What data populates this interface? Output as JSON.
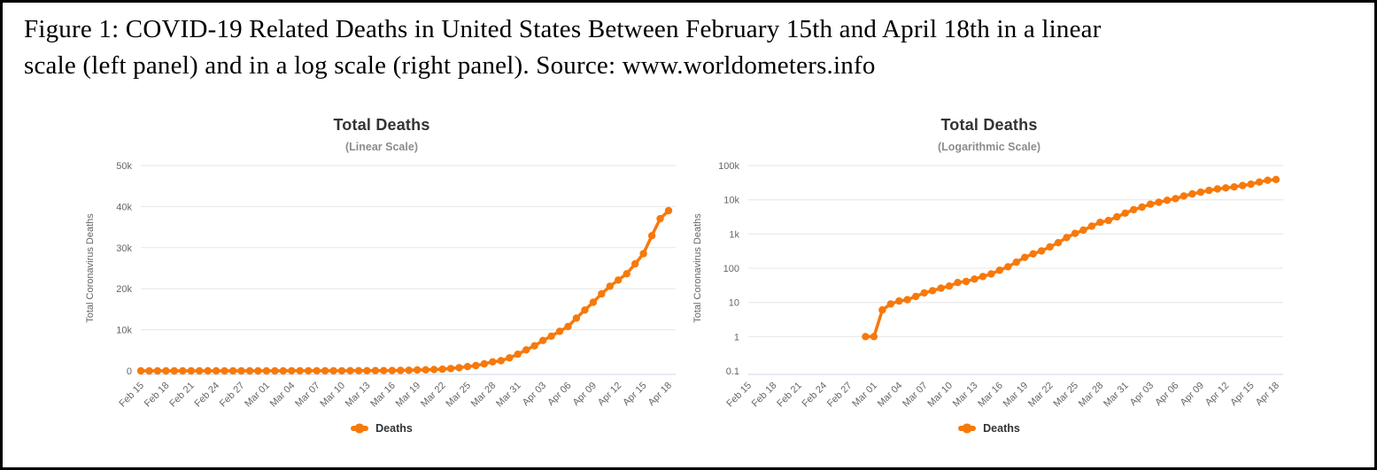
{
  "caption": {
    "line1": "Figure 1: COVID-19 Related Deaths in United States Between February 15th and April 18th in a linear",
    "line2": "scale (left panel) and in a log scale (right panel). Source: www.worldometers.info"
  },
  "colors": {
    "series": "#f7790b",
    "grid": "#e6e6e6",
    "axis_line": "#ccd6eb",
    "title": "#333333",
    "subtitle": "#666666",
    "tick_label": "#666666"
  },
  "chart_data": [
    {
      "type": "line",
      "title": "Total Deaths",
      "subtitle": "(Linear Scale)",
      "ylabel": "Total Coronavirus Deaths",
      "legend_label": "Deaths",
      "scale": "linear",
      "ymin": 0,
      "ymax": 50000,
      "yticks": [
        {
          "v": 0,
          "label": "0"
        },
        {
          "v": 10000,
          "label": "10k"
        },
        {
          "v": 20000,
          "label": "20k"
        },
        {
          "v": 30000,
          "label": "30k"
        },
        {
          "v": 40000,
          "label": "40k"
        },
        {
          "v": 50000,
          "label": "50k"
        }
      ],
      "xtick_interval": 3,
      "x": [
        "Feb 15",
        "Feb 16",
        "Feb 17",
        "Feb 18",
        "Feb 19",
        "Feb 20",
        "Feb 21",
        "Feb 22",
        "Feb 23",
        "Feb 24",
        "Feb 25",
        "Feb 26",
        "Feb 27",
        "Feb 28",
        "Feb 29",
        "Mar 01",
        "Mar 02",
        "Mar 03",
        "Mar 04",
        "Mar 05",
        "Mar 06",
        "Mar 07",
        "Mar 08",
        "Mar 09",
        "Mar 10",
        "Mar 11",
        "Mar 12",
        "Mar 13",
        "Mar 14",
        "Mar 15",
        "Mar 16",
        "Mar 17",
        "Mar 18",
        "Mar 19",
        "Mar 20",
        "Mar 21",
        "Mar 22",
        "Mar 23",
        "Mar 24",
        "Mar 25",
        "Mar 26",
        "Mar 27",
        "Mar 28",
        "Mar 29",
        "Mar 30",
        "Mar 31",
        "Apr 01",
        "Apr 02",
        "Apr 03",
        "Apr 04",
        "Apr 05",
        "Apr 06",
        "Apr 07",
        "Apr 08",
        "Apr 09",
        "Apr 10",
        "Apr 11",
        "Apr 12",
        "Apr 13",
        "Apr 14",
        "Apr 15",
        "Apr 16",
        "Apr 17",
        "Apr 18"
      ],
      "values": [
        0,
        0,
        0,
        0,
        0,
        0,
        0,
        0,
        0,
        0,
        0,
        0,
        0,
        0,
        1,
        1,
        6,
        9,
        11,
        12,
        15,
        19,
        22,
        26,
        30,
        38,
        41,
        48,
        57,
        68,
        87,
        110,
        150,
        207,
        263,
        319,
        419,
        557,
        784,
        1041,
        1296,
        1696,
        2191,
        2484,
        3165,
        4056,
        5110,
        6095,
        7399,
        8448,
        9624,
        10792,
        12855,
        14797,
        16700,
        18758,
        20608,
        22115,
        23649,
        26061,
        28529,
        32917,
        37054,
        39014
      ]
    },
    {
      "type": "line",
      "title": "Total Deaths",
      "subtitle": "(Logarithmic Scale)",
      "ylabel": "Total Coronavirus Deaths",
      "legend_label": "Deaths",
      "scale": "log",
      "ymin": 0.1,
      "ymax": 100000,
      "yticks": [
        {
          "v": 0.1,
          "label": "0.1"
        },
        {
          "v": 1,
          "label": "1"
        },
        {
          "v": 10,
          "label": "10"
        },
        {
          "v": 100,
          "label": "100"
        },
        {
          "v": 1000,
          "label": "1k"
        },
        {
          "v": 10000,
          "label": "10k"
        },
        {
          "v": 100000,
          "label": "100k"
        }
      ],
      "xtick_interval": 3,
      "x": [
        "Feb 15",
        "Feb 16",
        "Feb 17",
        "Feb 18",
        "Feb 19",
        "Feb 20",
        "Feb 21",
        "Feb 22",
        "Feb 23",
        "Feb 24",
        "Feb 25",
        "Feb 26",
        "Feb 27",
        "Feb 28",
        "Feb 29",
        "Mar 01",
        "Mar 02",
        "Mar 03",
        "Mar 04",
        "Mar 05",
        "Mar 06",
        "Mar 07",
        "Mar 08",
        "Mar 09",
        "Mar 10",
        "Mar 11",
        "Mar 12",
        "Mar 13",
        "Mar 14",
        "Mar 15",
        "Mar 16",
        "Mar 17",
        "Mar 18",
        "Mar 19",
        "Mar 20",
        "Mar 21",
        "Mar 22",
        "Mar 23",
        "Mar 24",
        "Mar 25",
        "Mar 26",
        "Mar 27",
        "Mar 28",
        "Mar 29",
        "Mar 30",
        "Mar 31",
        "Apr 01",
        "Apr 02",
        "Apr 03",
        "Apr 04",
        "Apr 05",
        "Apr 06",
        "Apr 07",
        "Apr 08",
        "Apr 09",
        "Apr 10",
        "Apr 11",
        "Apr 12",
        "Apr 13",
        "Apr 14",
        "Apr 15",
        "Apr 16",
        "Apr 17",
        "Apr 18"
      ],
      "values": [
        null,
        null,
        null,
        null,
        null,
        null,
        null,
        null,
        null,
        null,
        null,
        null,
        null,
        null,
        1,
        1,
        6,
        9,
        11,
        12,
        15,
        19,
        22,
        26,
        30,
        38,
        41,
        48,
        57,
        68,
        87,
        110,
        150,
        207,
        263,
        319,
        419,
        557,
        784,
        1041,
        1296,
        1696,
        2191,
        2484,
        3165,
        4056,
        5110,
        6095,
        7399,
        8448,
        9624,
        10792,
        12855,
        14797,
        16700,
        18758,
        20608,
        22115,
        23649,
        26061,
        28529,
        32917,
        37054,
        39014
      ]
    }
  ]
}
